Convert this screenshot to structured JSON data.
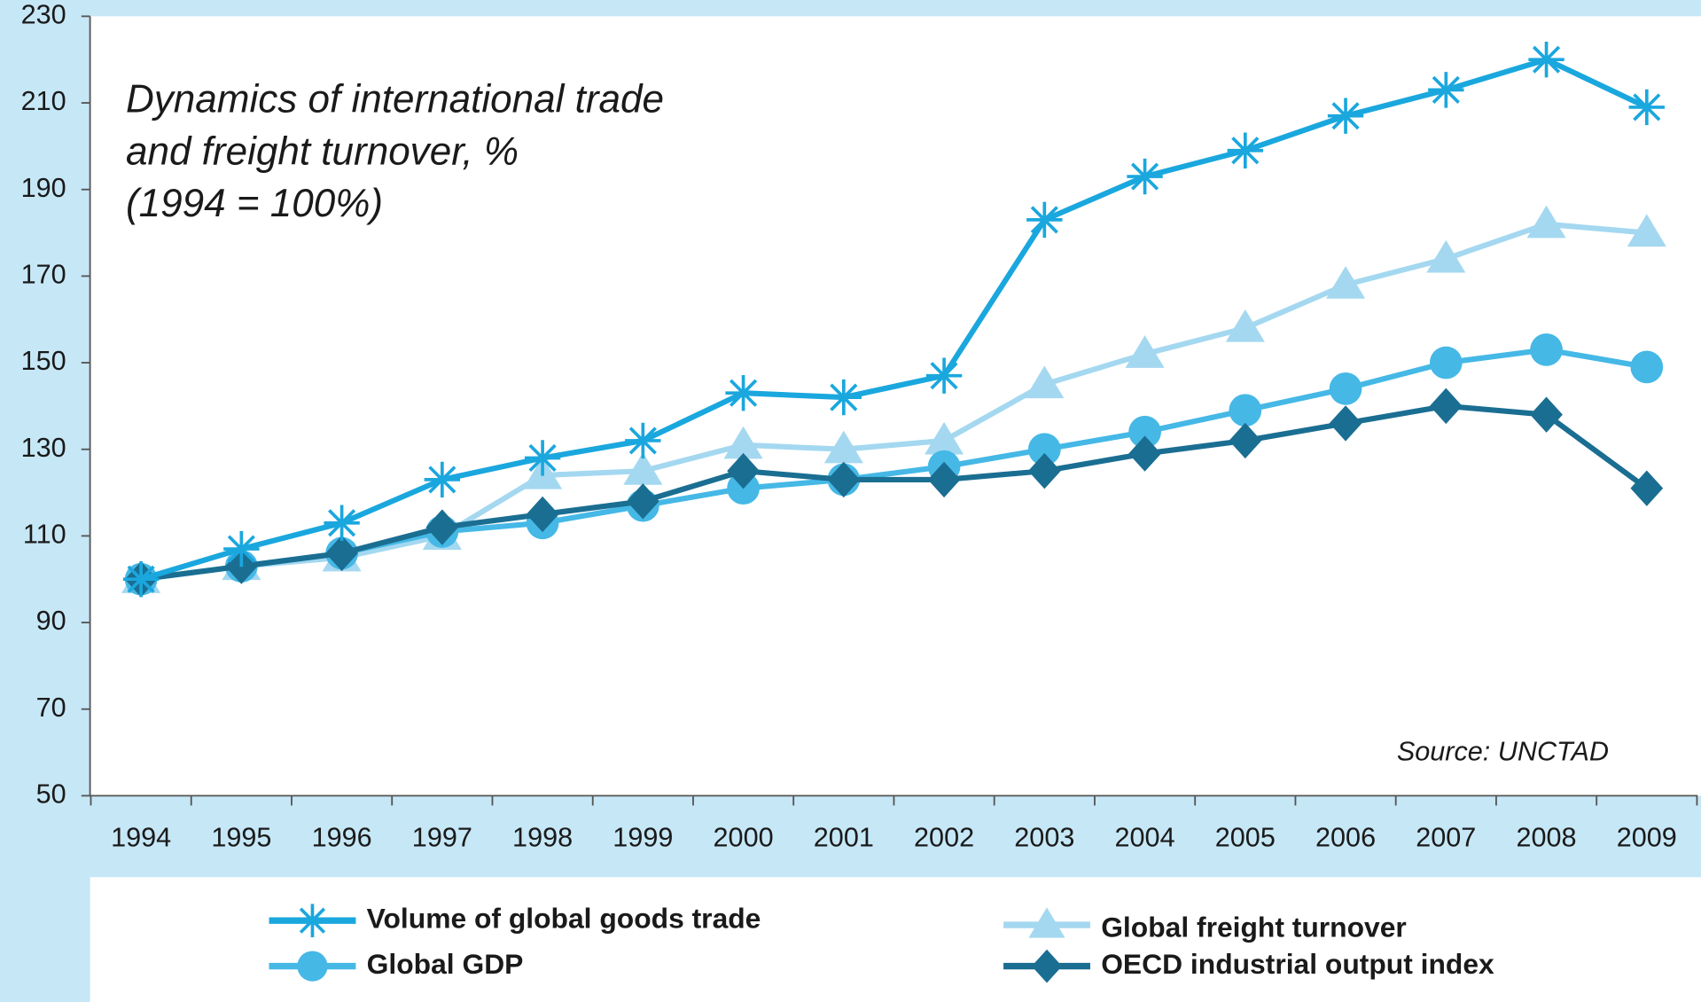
{
  "chart_data": {
    "type": "line",
    "title": [
      "Dynamics of international trade",
      "and freight turnover, %",
      "(1994 = 100%)"
    ],
    "annotation": "Source: UNCTAD",
    "categories": [
      "1994",
      "1995",
      "1996",
      "1997",
      "1998",
      "1999",
      "2000",
      "2001",
      "2002",
      "2003",
      "2004",
      "2005",
      "2006",
      "2007",
      "2008",
      "2009"
    ],
    "series": [
      {
        "name": "Volume of global goods trade",
        "color": "#1aa7de",
        "marker": "asterisk",
        "values": [
          100,
          107,
          113,
          123,
          128,
          132,
          143,
          142,
          147,
          183,
          193,
          199,
          207,
          213,
          220,
          209
        ]
      },
      {
        "name": "Global freight turnover",
        "color": "#a4d8f0",
        "marker": "triangle",
        "values": [
          100,
          103,
          105,
          110,
          124,
          125,
          131,
          130,
          132,
          145,
          152,
          158,
          168,
          174,
          182,
          180
        ]
      },
      {
        "name": "Global GDP",
        "color": "#45b8e6",
        "marker": "circle",
        "values": [
          100,
          103,
          106,
          111,
          113,
          117,
          121,
          123,
          126,
          130,
          134,
          139,
          144,
          150,
          153,
          149
        ]
      },
      {
        "name": "OECD industrial output index",
        "color": "#1a6e92",
        "marker": "diamond",
        "values": [
          100,
          103,
          106,
          112,
          115,
          118,
          125,
          123,
          123,
          125,
          129,
          132,
          136,
          140,
          138,
          121
        ]
      }
    ],
    "ylim": [
      50,
      230
    ],
    "yticks": [
      50,
      70,
      90,
      110,
      130,
      150,
      170,
      190,
      210,
      230
    ],
    "grid": false
  }
}
